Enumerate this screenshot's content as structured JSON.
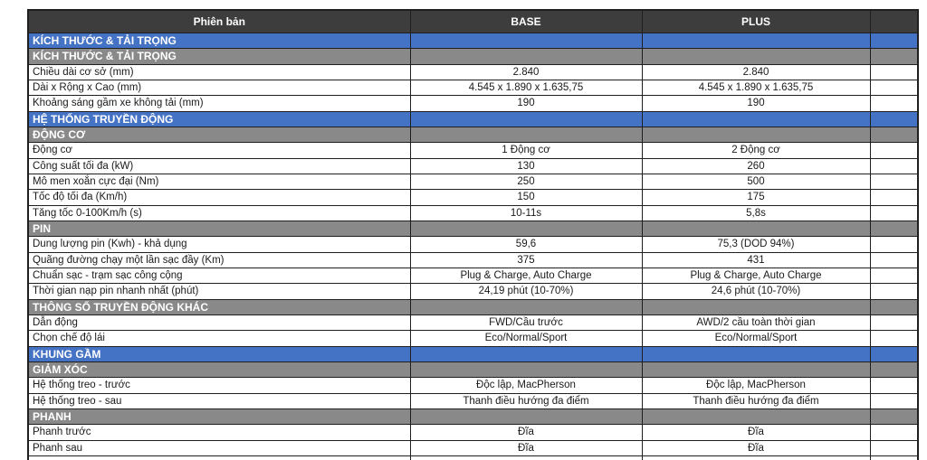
{
  "table": {
    "header": {
      "version": "Phiên bản",
      "base": "BASE",
      "plus": "PLUS"
    },
    "rows": [
      {
        "type": "section_blue",
        "label": "KÍCH THƯỚC & TẢI TRỌNG"
      },
      {
        "type": "section_gray",
        "label": "KÍCH THƯỚC & TẢI TRỌNG"
      },
      {
        "type": "data",
        "label": "Chiều dài cơ sở (mm)",
        "base": "2.840",
        "plus": "2.840"
      },
      {
        "type": "data",
        "label": "Dài x Rộng x Cao (mm)",
        "base": "4.545 x 1.890 x 1.635,75",
        "plus": "4.545 x 1.890 x 1.635,75"
      },
      {
        "type": "data",
        "label": "Khoảng sáng gầm xe không tải (mm)",
        "base": "190",
        "plus": "190"
      },
      {
        "type": "section_blue",
        "label": "HỆ THỐNG TRUYỀN ĐỘNG"
      },
      {
        "type": "section_gray",
        "label": "ĐỘNG CƠ"
      },
      {
        "type": "data",
        "label": "Động cơ",
        "base": "1 Động cơ",
        "plus": "2 Động cơ"
      },
      {
        "type": "data",
        "label": "Công suất tối đa (kW)",
        "base": "130",
        "plus": "260"
      },
      {
        "type": "data",
        "label": "Mô men xoắn cực đại (Nm)",
        "base": "250",
        "plus": "500"
      },
      {
        "type": "data",
        "label": "Tốc độ tối đa (Km/h)",
        "base": "150",
        "plus": "175"
      },
      {
        "type": "data",
        "label": "Tăng tốc 0-100Km/h (s)",
        "base": "10-11s",
        "plus": "5,8s"
      },
      {
        "type": "section_gray",
        "label": "PIN"
      },
      {
        "type": "data",
        "label": "Dung lượng pin (Kwh) - khả dụng",
        "base": "59,6",
        "plus": "75,3 (DOD 94%)"
      },
      {
        "type": "data",
        "label": "Quãng đường chạy một lần sạc đầy (Km)",
        "base": "375",
        "plus": "431"
      },
      {
        "type": "data",
        "label": "Chuẩn sạc - trạm sạc công cộng",
        "base": "Plug & Charge, Auto Charge",
        "plus": "Plug & Charge, Auto Charge"
      },
      {
        "type": "data",
        "label": "Thời gian nạp pin nhanh nhất (phút)",
        "base": "24,19 phút (10-70%)",
        "plus": "24,6 phút (10-70%)"
      },
      {
        "type": "section_gray",
        "label": "THÔNG SỐ TRUYỀN ĐỘNG KHÁC"
      },
      {
        "type": "data",
        "label": "Dẫn động",
        "base": "FWD/Cầu trước",
        "plus": "AWD/2 cầu toàn thời gian"
      },
      {
        "type": "data",
        "label": "Chọn chế độ lái",
        "base": "Eco/Normal/Sport",
        "plus": "Eco/Normal/Sport"
      },
      {
        "type": "section_blue",
        "label": "KHUNG GẦM"
      },
      {
        "type": "section_gray",
        "label": "GIẢM XÓC"
      },
      {
        "type": "data",
        "label": "Hệ thống treo - trước",
        "base": "Độc lập, MacPherson",
        "plus": "Độc lập, MacPherson"
      },
      {
        "type": "data",
        "label": "Hệ thống treo - sau",
        "base": "Thanh điều hướng đa điểm",
        "plus": "Thanh điều hướng đa điểm"
      },
      {
        "type": "section_gray",
        "label": "PHANH"
      },
      {
        "type": "data",
        "label": "Phanh trước",
        "base": "Đĩa",
        "plus": "Đĩa"
      },
      {
        "type": "data",
        "label": "Phanh sau",
        "base": "Đĩa",
        "plus": "Đĩa"
      },
      {
        "type": "data",
        "label": "",
        "base": "",
        "plus": ""
      }
    ]
  },
  "colors": {
    "header_bg": "#3d3d3d",
    "section_blue": "#4472c4",
    "section_gray": "#898989",
    "border": "#1f1f1f",
    "row_bg": "#ffffff"
  }
}
